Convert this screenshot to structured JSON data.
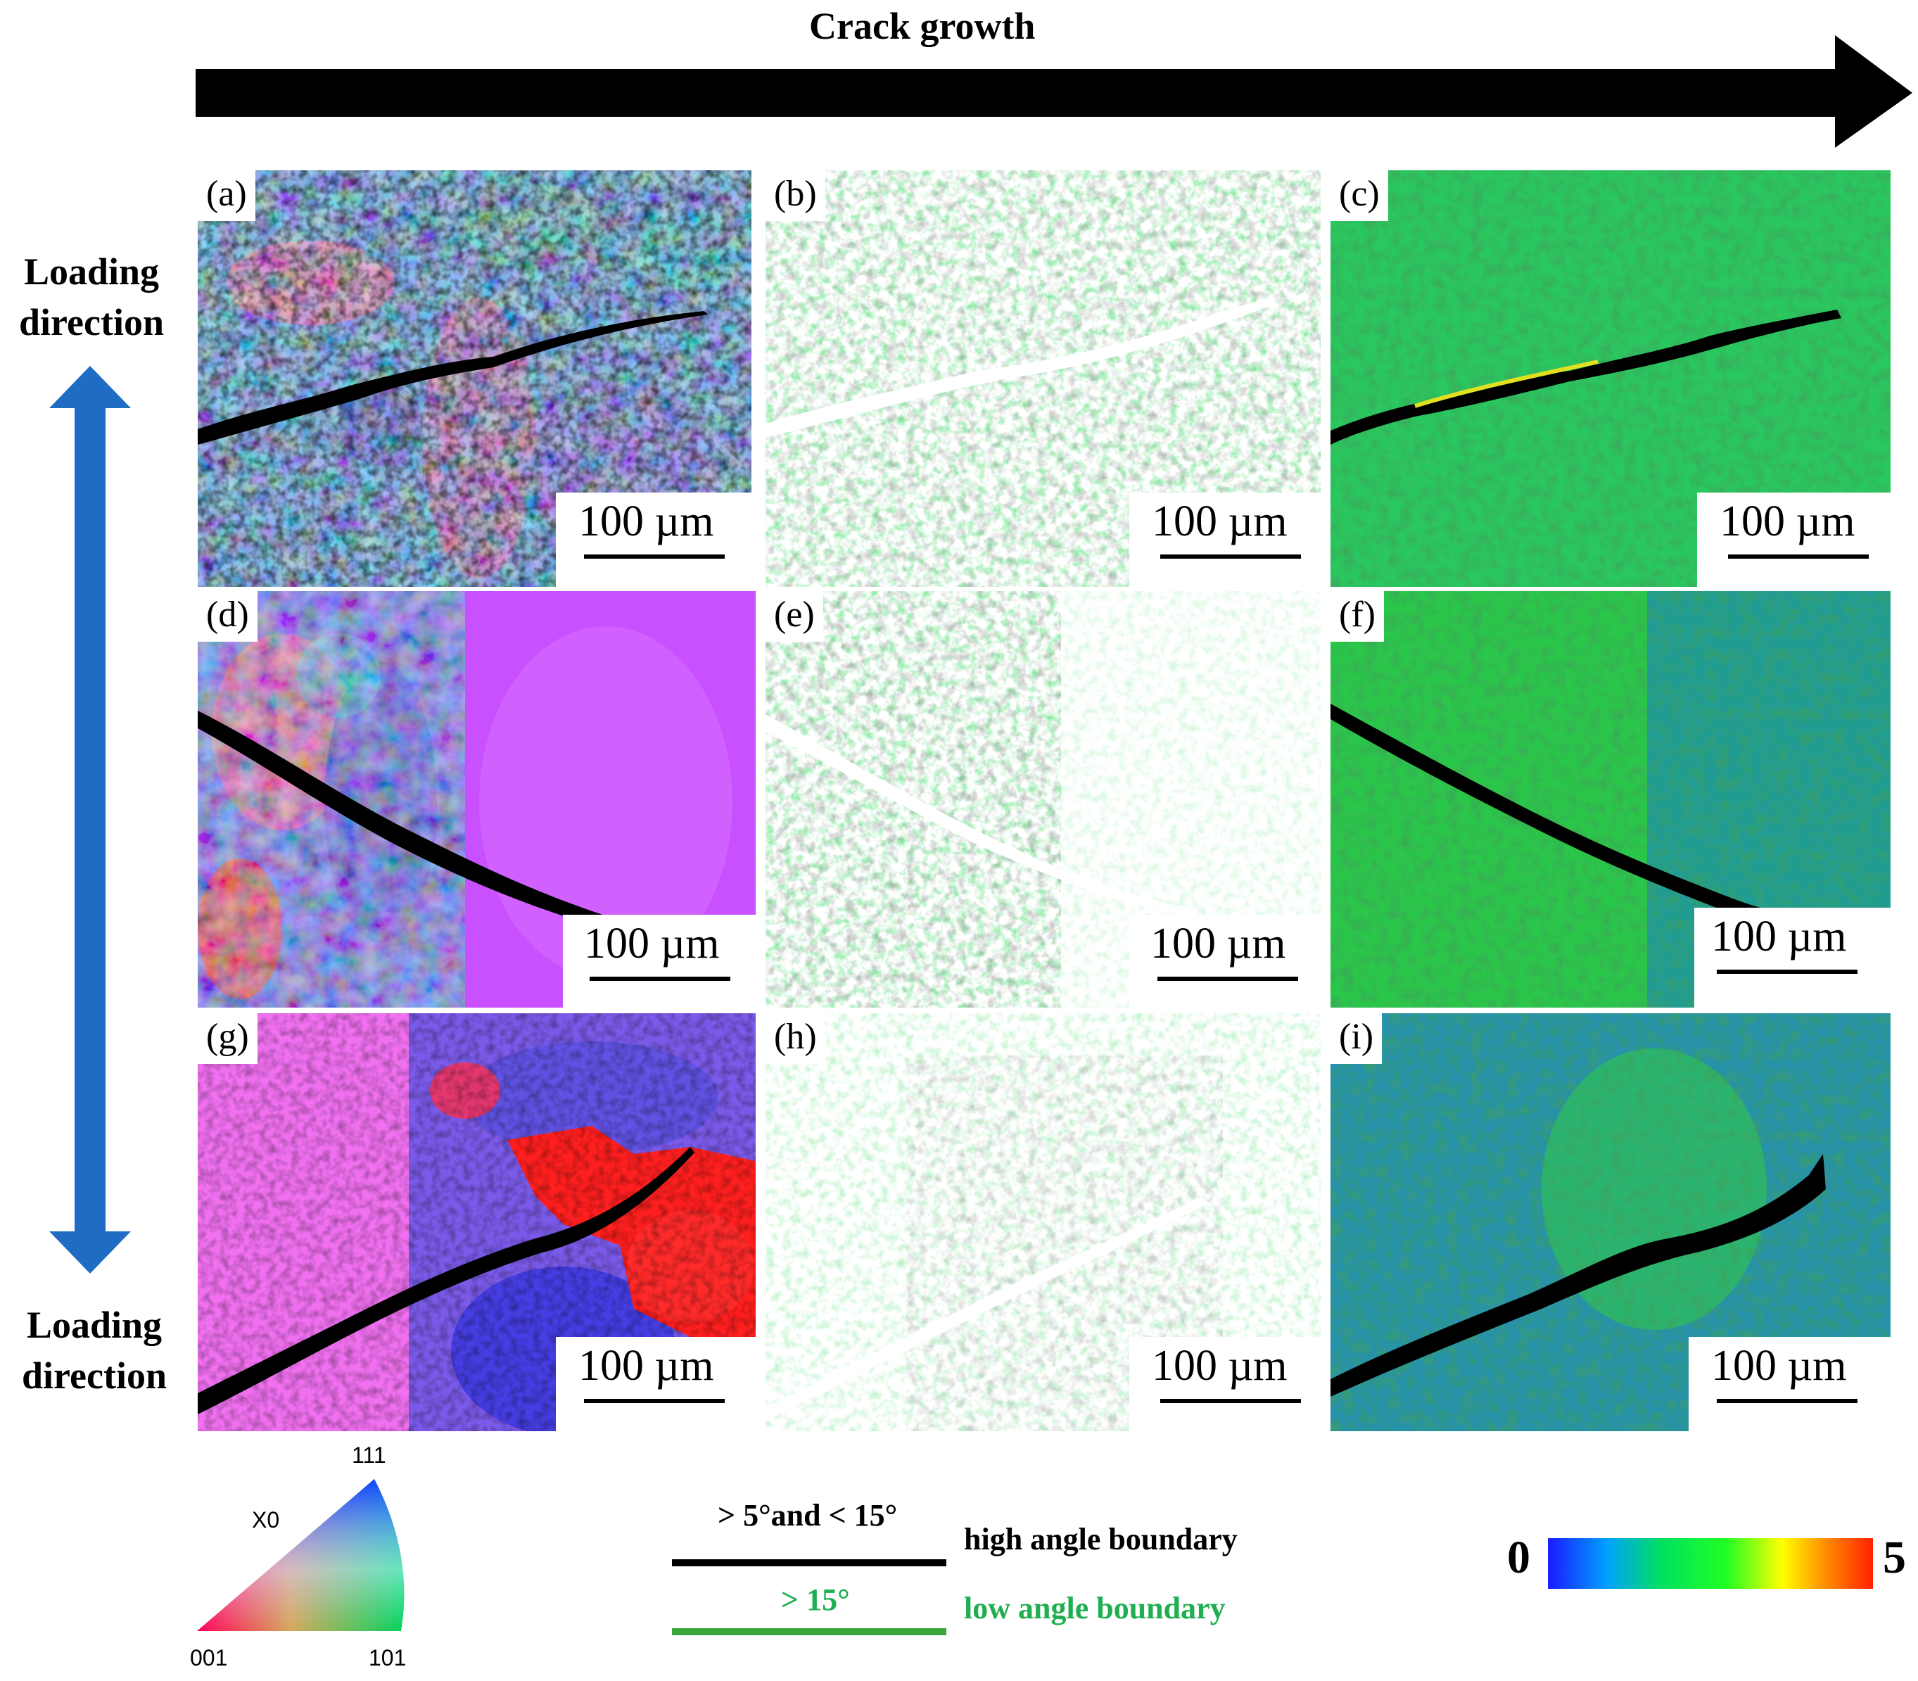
{
  "figure": {
    "top_arrow_label": "Crack growth",
    "loading_label_top": [
      "Loading",
      "direction"
    ],
    "loading_label_bottom": [
      "Loading",
      "direction"
    ],
    "panels": [
      {
        "id": "a",
        "label": "(a)",
        "map": "ipf",
        "variant": 1,
        "scale": "100 µm"
      },
      {
        "id": "b",
        "label": "(b)",
        "map": "boundary",
        "variant": 1,
        "scale": "100 µm"
      },
      {
        "id": "c",
        "label": "(c)",
        "map": "kam",
        "variant": 1,
        "scale": "100 µm"
      },
      {
        "id": "d",
        "label": "(d)",
        "map": "ipf",
        "variant": 2,
        "scale": "100 µm"
      },
      {
        "id": "e",
        "label": "(e)",
        "map": "boundary",
        "variant": 2,
        "scale": "100 µm"
      },
      {
        "id": "f",
        "label": "(f)",
        "map": "kam",
        "variant": 2,
        "scale": "100 µm"
      },
      {
        "id": "g",
        "label": "(g)",
        "map": "ipf",
        "variant": 3,
        "scale": "100 µm"
      },
      {
        "id": "h",
        "label": "(h)",
        "map": "boundary",
        "variant": 3,
        "scale": "100 µm"
      },
      {
        "id": "i",
        "label": "(i)",
        "map": "kam",
        "variant": 3,
        "scale": "100 µm"
      }
    ]
  },
  "ipf_legend": {
    "corner_111": "111",
    "corner_001": "001",
    "corner_101": "101",
    "axis_label": "X0",
    "colors": {
      "c001": "#ff0000",
      "c101": "#00cc00",
      "c111": "#0000ff"
    }
  },
  "boundary_legend": {
    "black_range": "> 5°and  < 15°",
    "black_label": "high angle boundary",
    "green_range": "> 15°",
    "green_label": "low angle boundary",
    "black_color": "#000000",
    "green_color": "#3aa53a",
    "green_text_color": "#1fae50"
  },
  "colorbar": {
    "min_label": "0",
    "max_label": "5",
    "stops": [
      "#1a1aff",
      "#00a0ff",
      "#00e060",
      "#22ff22",
      "#ffff00",
      "#ff8800",
      "#ff2200"
    ]
  }
}
